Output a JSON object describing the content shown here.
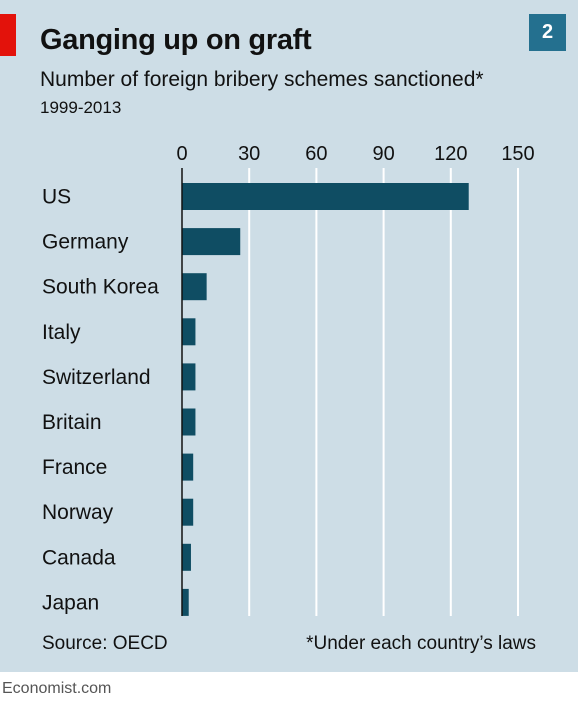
{
  "header": {
    "title": "Ganging up on graft",
    "chart_number": "2",
    "subtitle": "Number of foreign bribery schemes sanctioned*",
    "period": "1999-2013"
  },
  "footer": {
    "source": "Source: OECD",
    "footnote": "*Under each country’s laws",
    "publisher": "Economist.com"
  },
  "colors": {
    "background": "#cddde6",
    "bar": "#0f4d63",
    "grid": "#ffffff",
    "accent_red": "#e3120b",
    "number_box": "#24708f"
  },
  "chart_data": {
    "type": "bar",
    "orientation": "horizontal",
    "title": "Ganging up on graft",
    "subtitle": "Number of foreign bribery schemes sanctioned*",
    "period": "1999-2013",
    "categories": [
      "US",
      "Germany",
      "South Korea",
      "Italy",
      "Switzerland",
      "Britain",
      "France",
      "Norway",
      "Canada",
      "Japan"
    ],
    "values": [
      128,
      26,
      11,
      6,
      6,
      6,
      5,
      5,
      4,
      3
    ],
    "xlim": [
      0,
      150
    ],
    "xticks": [
      0,
      30,
      60,
      90,
      120,
      150
    ],
    "grid": true,
    "xaxis_position": "top"
  }
}
